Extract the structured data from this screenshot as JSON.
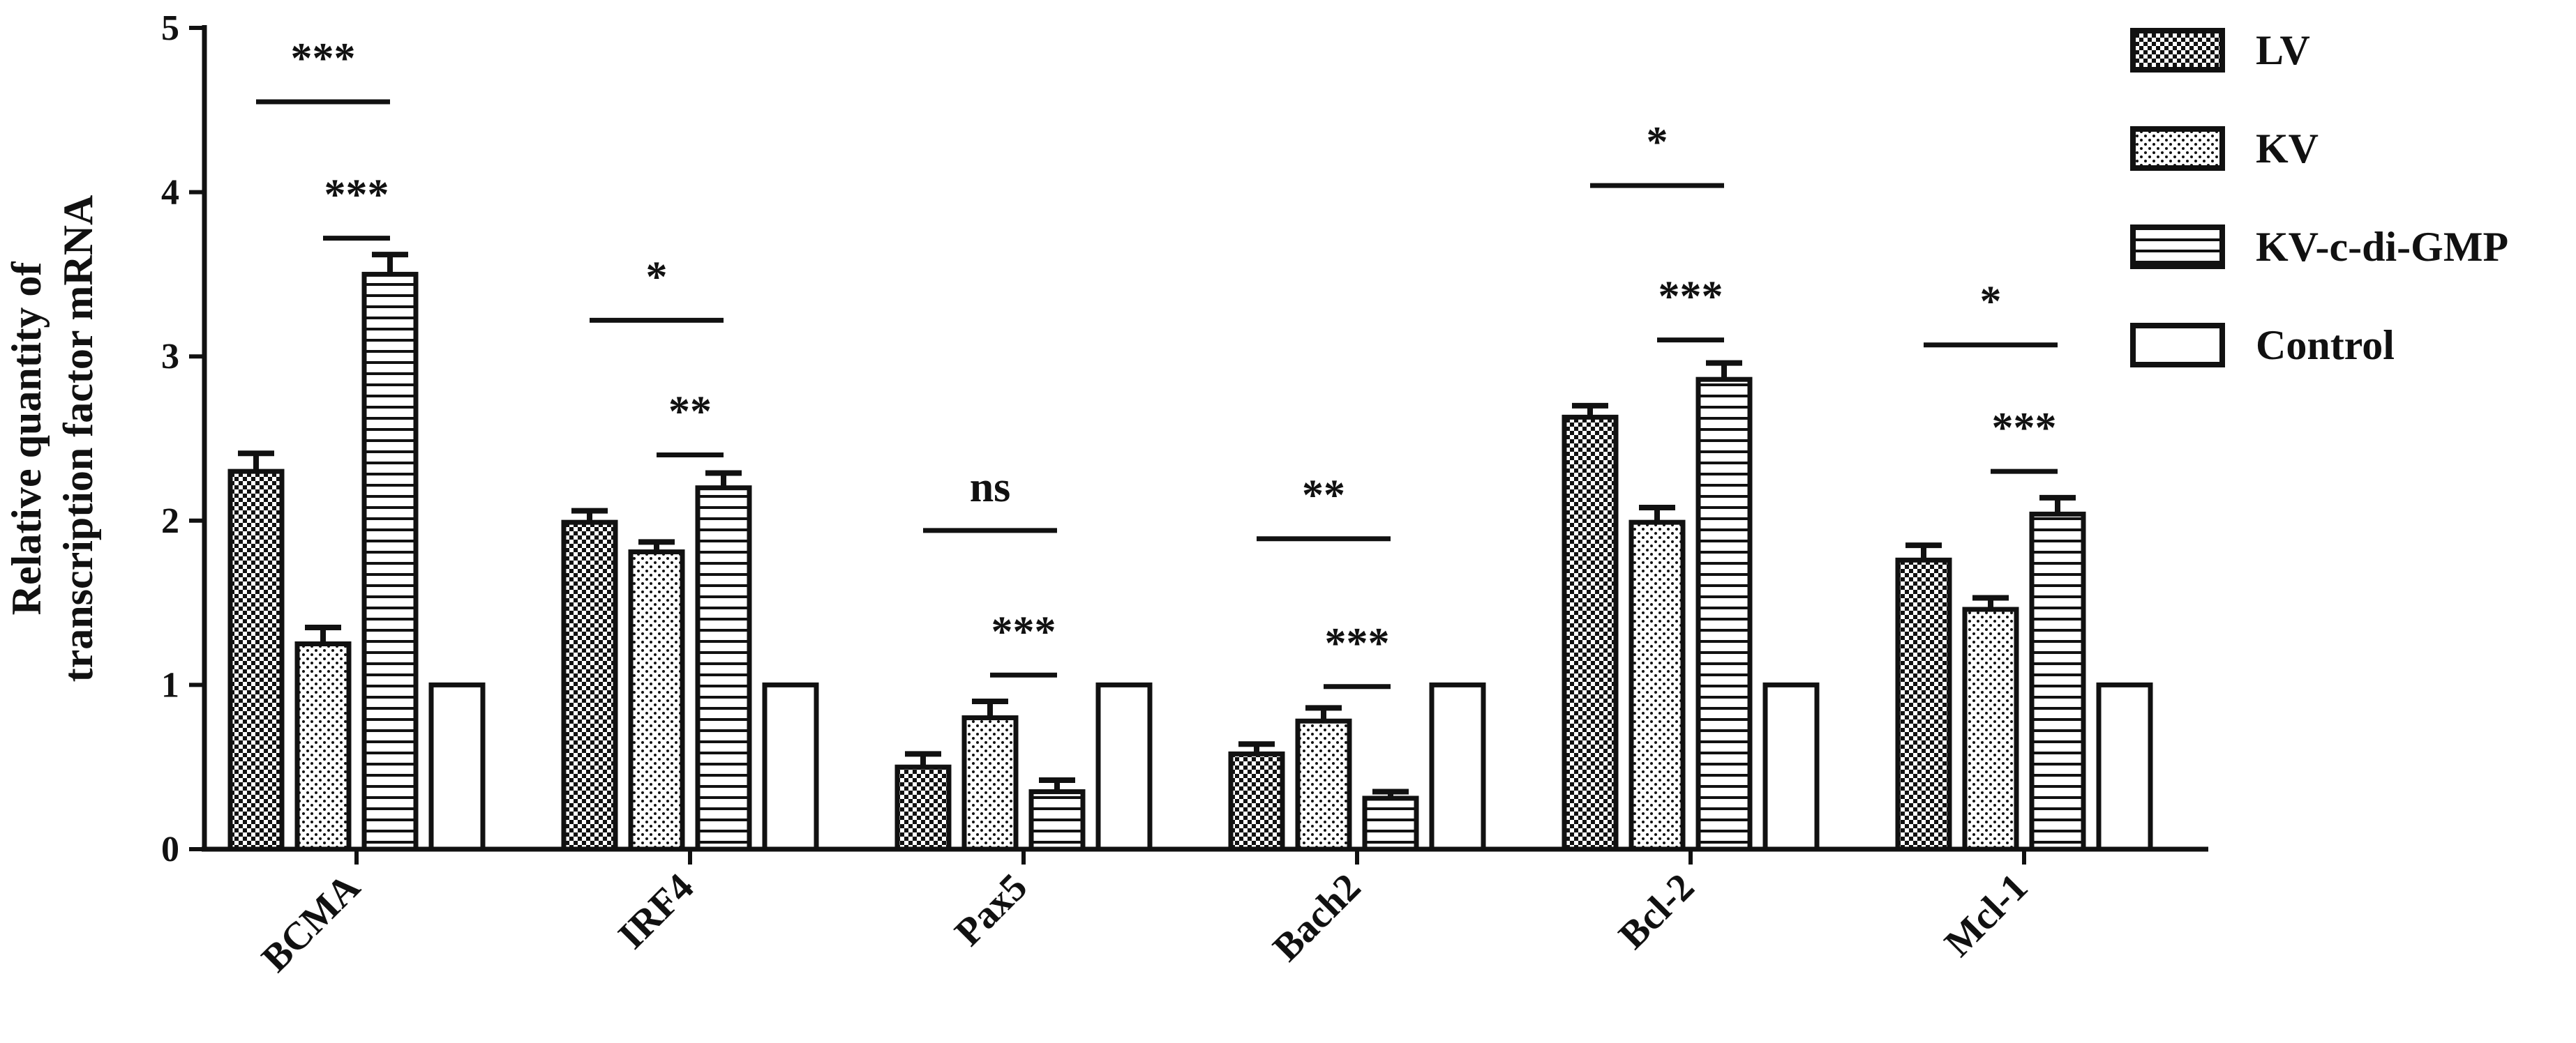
{
  "chart_data": {
    "type": "bar",
    "title": "",
    "xlabel": "",
    "ylabel": "Relative quantity of transcription factor mRNA",
    "ylabel_lines": [
      "Relative quantity of",
      "transcription factor mRNA"
    ],
    "ylim": [
      0,
      5
    ],
    "yticks": [
      "0",
      "1",
      "2",
      "3",
      "4",
      "5"
    ],
    "categories": [
      "BCMA",
      "IRF4",
      "Pax5",
      "Bach2",
      "Bcl-2",
      "Mcl-1"
    ],
    "series": [
      {
        "name": "LV",
        "pattern": "checker",
        "values": [
          2.3,
          1.99,
          0.5,
          0.58,
          2.63,
          1.76
        ],
        "errors": [
          0.11,
          0.07,
          0.08,
          0.06,
          0.07,
          0.09
        ]
      },
      {
        "name": "KV",
        "pattern": "dots",
        "values": [
          1.25,
          1.81,
          0.8,
          0.78,
          1.99,
          1.46
        ],
        "errors": [
          0.1,
          0.06,
          0.1,
          0.08,
          0.09,
          0.07
        ]
      },
      {
        "name": "KV-c-di-GMP",
        "pattern": "hlines",
        "values": [
          3.5,
          2.2,
          0.35,
          0.31,
          2.86,
          2.04
        ],
        "errors": [
          0.12,
          0.09,
          0.07,
          0.04,
          0.1,
          0.1
        ]
      },
      {
        "name": "Control",
        "pattern": "solid",
        "values": [
          1.0,
          1.0,
          1.0,
          1.0,
          1.0,
          1.0
        ],
        "errors": [
          0.02,
          0.02,
          0.02,
          0.02,
          0.02,
          0.02
        ]
      }
    ],
    "significance": [
      {
        "category": 0,
        "from_series": 0,
        "to_series": 2,
        "y": 4.55,
        "label": "***"
      },
      {
        "category": 0,
        "from_series": 1,
        "to_series": 2,
        "y": 3.72,
        "label": "***"
      },
      {
        "category": 1,
        "from_series": 0,
        "to_series": 2,
        "y": 3.22,
        "label": "*"
      },
      {
        "category": 1,
        "from_series": 1,
        "to_series": 2,
        "y": 2.4,
        "label": "**"
      },
      {
        "category": 2,
        "from_series": 0,
        "to_series": 2,
        "y": 1.94,
        "label": "ns"
      },
      {
        "category": 2,
        "from_series": 1,
        "to_series": 2,
        "y": 1.06,
        "label": "***"
      },
      {
        "category": 3,
        "from_series": 0,
        "to_series": 2,
        "y": 1.89,
        "label": "**"
      },
      {
        "category": 3,
        "from_series": 1,
        "to_series": 2,
        "y": 0.99,
        "label": "***"
      },
      {
        "category": 4,
        "from_series": 0,
        "to_series": 2,
        "y": 4.04,
        "label": "*"
      },
      {
        "category": 4,
        "from_series": 1,
        "to_series": 2,
        "y": 3.1,
        "label": "***"
      },
      {
        "category": 5,
        "from_series": 0,
        "to_series": 2,
        "y": 3.07,
        "label": "*"
      },
      {
        "category": 5,
        "from_series": 1,
        "to_series": 2,
        "y": 2.3,
        "label": "***"
      }
    ],
    "legend": {
      "position": "top-right",
      "entries": [
        "LV",
        "KV",
        "KV-c-di-GMP",
        "Control"
      ]
    },
    "grid": false,
    "colors": {
      "bar_outline": "#111111",
      "fill_dark": "#111111",
      "background": "#ffffff"
    }
  }
}
